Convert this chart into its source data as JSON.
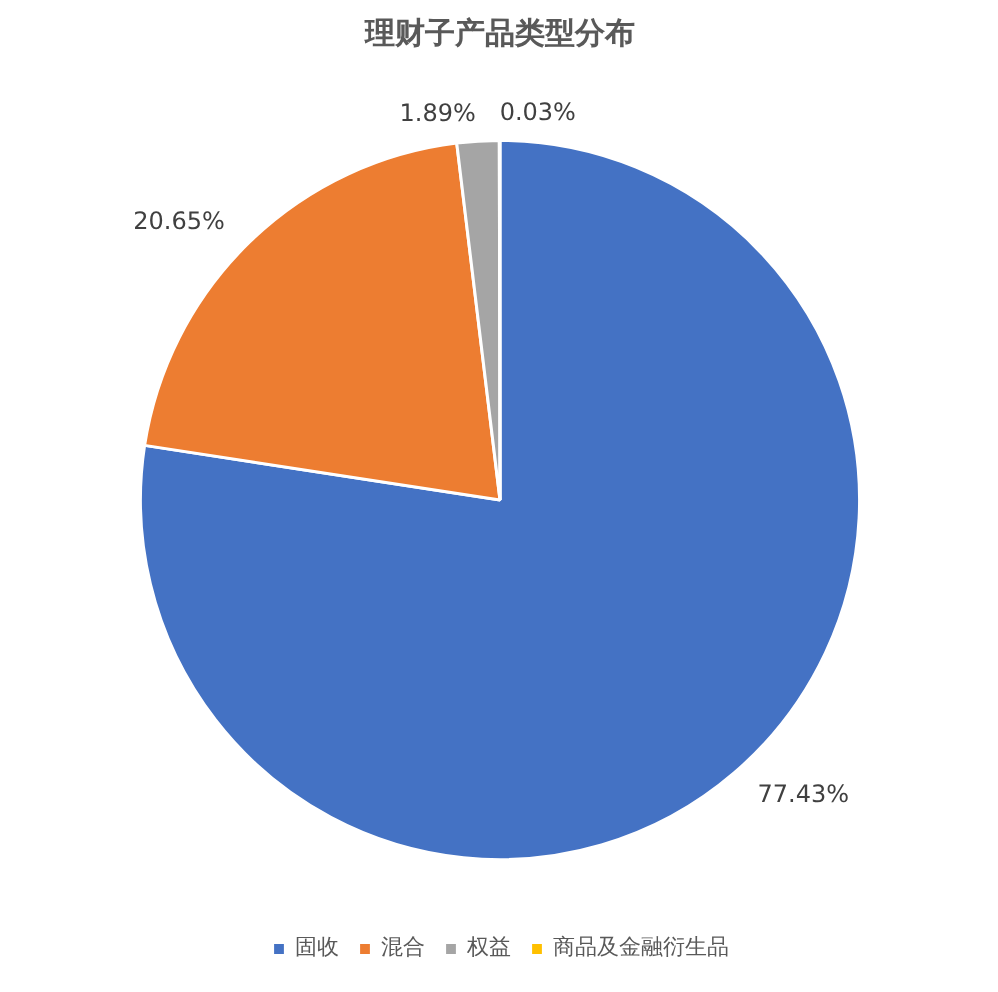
{
  "chart_data": {
    "type": "pie",
    "title": "理财子产品类型分布",
    "categories": [
      "固收",
      "混合",
      "权益",
      "商品及金融衍生品"
    ],
    "values": [
      77.43,
      20.65,
      1.89,
      0.03
    ],
    "colors": [
      "#4472c4",
      "#ed7d31",
      "#a5a5a5",
      "#ffc000"
    ],
    "value_labels": [
      "77.43%",
      "20.65%",
      "1.89%",
      "0.03%"
    ],
    "legend": "bottom"
  }
}
